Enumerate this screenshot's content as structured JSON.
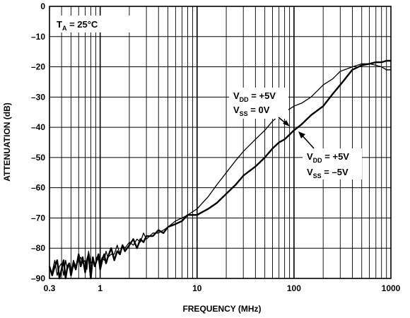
{
  "chart_data": {
    "type": "line",
    "xlabel": "FREQUENCY (MHz)",
    "ylabel": "ATTENUATION (dB)",
    "x_scale": "log",
    "xlim": [
      0.3,
      1000
    ],
    "ylim": [
      -90,
      0
    ],
    "grid": true,
    "x_ticks": [
      {
        "value": 0.3,
        "label": "0.3"
      },
      {
        "value": 1,
        "label": "1"
      },
      {
        "value": 10,
        "label": "10"
      },
      {
        "value": 100,
        "label": "100"
      },
      {
        "value": 1000,
        "label": "1000"
      }
    ],
    "y_ticks": [
      {
        "value": 0,
        "label": "0"
      },
      {
        "value": -10,
        "label": "–10"
      },
      {
        "value": -20,
        "label": "–20"
      },
      {
        "value": -30,
        "label": "–30"
      },
      {
        "value": -40,
        "label": "–40"
      },
      {
        "value": -50,
        "label": "–50"
      },
      {
        "value": -60,
        "label": "–60"
      },
      {
        "value": -70,
        "label": "–70"
      },
      {
        "value": -80,
        "label": "–80"
      },
      {
        "value": -90,
        "label": "–90"
      }
    ],
    "condition_label": {
      "main": "T",
      "sub": "A",
      "rest": " = 25°C"
    },
    "series": [
      {
        "id": "vss-0",
        "label_lines": [
          {
            "main": "V",
            "sub": "DD",
            "rest": " = +5V"
          },
          {
            "main": "V",
            "sub": "SS",
            "rest": " = 0V"
          }
        ],
        "stroke_width": 1.3,
        "x": [
          0.3,
          0.32,
          0.34,
          0.36,
          0.38,
          0.4,
          0.42,
          0.44,
          0.46,
          0.48,
          0.5,
          0.53,
          0.56,
          0.6,
          0.63,
          0.66,
          0.7,
          0.73,
          0.76,
          0.8,
          0.84,
          0.88,
          0.92,
          0.96,
          1.0,
          1.05,
          1.1,
          1.15,
          1.2,
          1.3,
          1.4,
          1.5,
          1.6,
          1.7,
          1.8,
          2.0,
          2.2,
          2.4,
          2.6,
          2.8,
          3.0,
          3.5,
          4,
          4.5,
          5,
          6,
          7,
          8,
          10,
          13,
          16,
          20,
          25,
          30,
          40,
          50,
          60,
          70,
          80,
          100,
          120,
          150,
          200,
          250,
          300,
          400,
          500,
          600,
          700,
          800,
          900,
          1000
        ],
        "y": [
          -87,
          -88,
          -84,
          -89,
          -86,
          -85,
          -89,
          -84,
          -87,
          -85,
          -88,
          -84,
          -86,
          -84,
          -83,
          -85,
          -84,
          -87,
          -81,
          -85,
          -84,
          -86,
          -83,
          -84,
          -85,
          -83,
          -84,
          -81,
          -83,
          -82,
          -82,
          -79,
          -82,
          -79,
          -80,
          -78,
          -79,
          -77,
          -78,
          -75,
          -77,
          -75,
          -75,
          -74,
          -73,
          -71,
          -70,
          -69,
          -67,
          -63,
          -59,
          -55,
          -51,
          -48,
          -44,
          -41,
          -38,
          -36,
          -35,
          -33,
          -32,
          -30,
          -26,
          -24,
          -21.5,
          -20,
          -19,
          -19,
          -19.5,
          -20,
          -21,
          -21
        ]
      },
      {
        "id": "vss-neg5",
        "label_lines": [
          {
            "main": "V",
            "sub": "DD",
            "rest": " = +5V"
          },
          {
            "main": "V",
            "sub": "SS",
            "rest": " = –5V"
          }
        ],
        "stroke_width": 2.4,
        "x": [
          0.3,
          0.32,
          0.34,
          0.36,
          0.38,
          0.4,
          0.42,
          0.44,
          0.46,
          0.48,
          0.5,
          0.53,
          0.56,
          0.6,
          0.63,
          0.66,
          0.7,
          0.73,
          0.76,
          0.8,
          0.84,
          0.88,
          0.92,
          0.96,
          1.0,
          1.05,
          1.1,
          1.15,
          1.2,
          1.3,
          1.4,
          1.5,
          1.6,
          1.7,
          1.8,
          2.0,
          2.2,
          2.4,
          2.6,
          2.8,
          3.0,
          3.5,
          4,
          4.5,
          5,
          6,
          7,
          8,
          10,
          13,
          16,
          20,
          25,
          30,
          40,
          50,
          60,
          70,
          80,
          100,
          120,
          150,
          200,
          250,
          300,
          400,
          500,
          600,
          700,
          800,
          900,
          1000
        ],
        "y": [
          -86,
          -89,
          -86,
          -84,
          -90,
          -87,
          -84,
          -90,
          -86,
          -85,
          -89,
          -85,
          -87,
          -82,
          -86,
          -83,
          -88,
          -84,
          -82,
          -90,
          -83,
          -86,
          -84,
          -82,
          -87,
          -84,
          -82,
          -85,
          -83,
          -80,
          -84,
          -81,
          -82,
          -79,
          -81,
          -79,
          -77,
          -80,
          -77,
          -78,
          -76,
          -76,
          -74,
          -75,
          -73,
          -72,
          -71,
          -69,
          -69,
          -67,
          -65,
          -62,
          -59,
          -56,
          -53,
          -50,
          -47,
          -45,
          -44,
          -41,
          -39,
          -36,
          -33,
          -29,
          -26,
          -21,
          -19.5,
          -19,
          -18.5,
          -18.5,
          -18,
          -18
        ]
      }
    ]
  }
}
